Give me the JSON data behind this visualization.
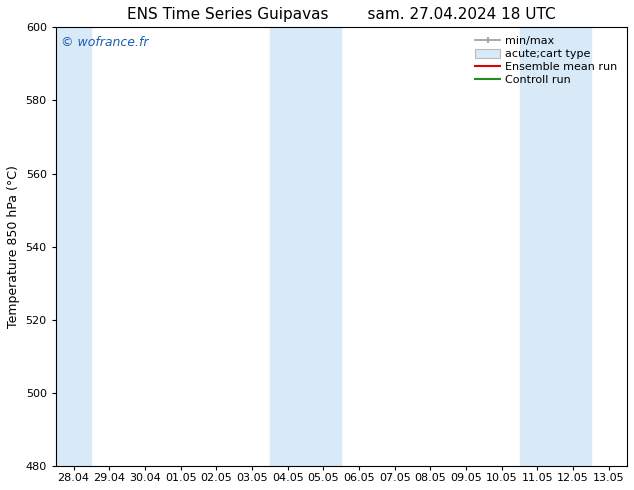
{
  "title_left": "ENS Time Series Guipavas",
  "title_right": "sam. 27.04.2024 18 UTC",
  "ylabel": "Temperature 850 hPa (°C)",
  "ylim": [
    480,
    600
  ],
  "yticks": [
    480,
    500,
    520,
    540,
    560,
    580,
    600
  ],
  "x_labels": [
    "28.04",
    "29.04",
    "30.04",
    "01.05",
    "02.05",
    "03.05",
    "04.05",
    "05.05",
    "06.05",
    "07.05",
    "08.05",
    "09.05",
    "10.05",
    "11.05",
    "12.05",
    "13.05"
  ],
  "shaded_ranges": [
    [
      0,
      1
    ],
    [
      6,
      8
    ],
    [
      13,
      15
    ]
  ],
  "watermark": "© wofrance.fr",
  "watermark_color": "#1a5fb0",
  "bg_color": "#ffffff",
  "plot_bg_color": "#ffffff",
  "band_color": "#d8eaf7",
  "legend_items": [
    {
      "label": "min/max",
      "type": "errorbar",
      "color": "#999999"
    },
    {
      "label": "acute;cart type",
      "type": "box",
      "color": "#bbbbbb"
    },
    {
      "label": "Ensemble mean run",
      "type": "line",
      "color": "#dd0000"
    },
    {
      "label": "Controll run",
      "type": "line",
      "color": "#228B22"
    }
  ],
  "title_fontsize": 11,
  "axis_fontsize": 9,
  "tick_fontsize": 8,
  "legend_fontsize": 8
}
